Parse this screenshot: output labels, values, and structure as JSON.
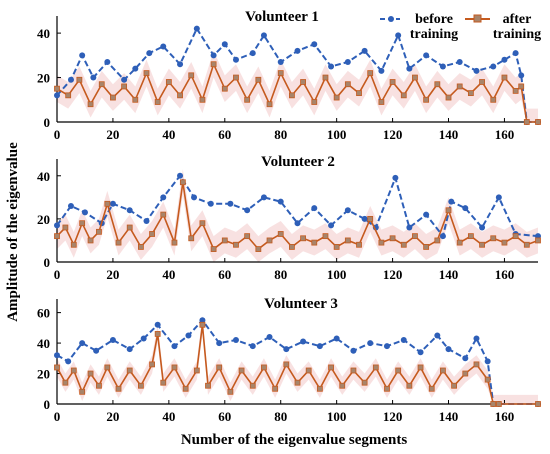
{
  "colors": {
    "before": "#2e5fb8",
    "after": "#c55a1e",
    "after_marker": "#a8846a",
    "band": "#f3c8c8",
    "axis": "#000000"
  },
  "labels": {
    "xlabel": "Number of the eigenvalue segments",
    "ylabel": "Amplitude of the eigenvalue"
  },
  "legend": {
    "placement": "top-right",
    "before_line1": "before",
    "before_line2": "training",
    "after_line1": "after",
    "after_line2": "training"
  },
  "chart_data": [
    {
      "type": "line",
      "title": "Volunteer 1",
      "xlim": [
        0,
        172
      ],
      "ylim": [
        0,
        45
      ],
      "xticks": [
        "0",
        "20",
        "40",
        "60",
        "80",
        "100",
        "120",
        "140",
        "160"
      ],
      "yticks": [
        "0",
        "20",
        "40"
      ],
      "series": [
        {
          "name": "before training",
          "x": [
            0,
            5,
            9,
            13,
            18,
            24,
            28,
            33,
            38,
            44,
            50,
            56,
            60,
            64,
            70,
            74,
            80,
            86,
            92,
            98,
            104,
            110,
            116,
            122,
            126,
            132,
            138,
            144,
            150,
            156,
            160,
            164,
            166,
            168,
            172
          ],
          "values": [
            12,
            19,
            30,
            20,
            27,
            19,
            24,
            31,
            34,
            26,
            42,
            30,
            35,
            28,
            31,
            39,
            27,
            32,
            35,
            25,
            27,
            32,
            23,
            39,
            24,
            30,
            25,
            27,
            23,
            25,
            28,
            31,
            21,
            0,
            0
          ]
        },
        {
          "name": "after training",
          "x": [
            0,
            4,
            8,
            12,
            16,
            20,
            24,
            28,
            32,
            36,
            40,
            44,
            48,
            52,
            56,
            60,
            64,
            68,
            72,
            76,
            80,
            84,
            88,
            92,
            96,
            100,
            104,
            108,
            112,
            116,
            120,
            124,
            128,
            132,
            136,
            140,
            144,
            148,
            152,
            156,
            160,
            164,
            166,
            168,
            172
          ],
          "values": [
            15,
            12,
            19,
            8,
            17,
            11,
            16,
            10,
            22,
            9,
            18,
            12,
            21,
            10,
            26,
            15,
            20,
            10,
            19,
            8,
            22,
            12,
            18,
            9,
            20,
            11,
            17,
            13,
            22,
            9,
            18,
            12,
            20,
            10,
            17,
            11,
            16,
            13,
            18,
            10,
            20,
            14,
            16,
            0,
            0
          ]
        }
      ]
    },
    {
      "type": "line",
      "title": "Volunteer 2",
      "xlim": [
        0,
        172
      ],
      "ylim": [
        0,
        45
      ],
      "xticks": [
        "0",
        "20",
        "40",
        "60",
        "80",
        "100",
        "120",
        "140",
        "160"
      ],
      "yticks": [
        "0",
        "20",
        "40"
      ],
      "series": [
        {
          "name": "before training",
          "x": [
            0,
            5,
            10,
            16,
            20,
            26,
            32,
            38,
            44,
            49,
            55,
            62,
            68,
            74,
            80,
            86,
            92,
            98,
            104,
            110,
            114,
            121,
            126,
            132,
            138,
            141,
            146,
            152,
            158,
            164,
            172
          ],
          "values": [
            17,
            26,
            23,
            18,
            27,
            24,
            19,
            30,
            40,
            30,
            27,
            27,
            24,
            30,
            28,
            18,
            25,
            17,
            24,
            20,
            16,
            39,
            16,
            22,
            12,
            28,
            25,
            16,
            30,
            13,
            12
          ]
        },
        {
          "name": "after training",
          "x": [
            0,
            3,
            6,
            9,
            12,
            15,
            18,
            22,
            26,
            30,
            34,
            38,
            42,
            45,
            48,
            52,
            56,
            60,
            64,
            68,
            72,
            76,
            80,
            84,
            88,
            92,
            96,
            100,
            104,
            108,
            112,
            116,
            120,
            124,
            128,
            132,
            136,
            140,
            144,
            148,
            152,
            156,
            160,
            164,
            168,
            172
          ],
          "values": [
            12,
            16,
            8,
            18,
            10,
            14,
            27,
            9,
            16,
            7,
            13,
            22,
            9,
            37,
            11,
            18,
            6,
            10,
            8,
            12,
            6,
            10,
            13,
            7,
            11,
            9,
            12,
            7,
            10,
            8,
            20,
            9,
            11,
            8,
            12,
            7,
            10,
            24,
            9,
            12,
            8,
            11,
            9,
            12,
            8,
            10
          ]
        }
      ]
    },
    {
      "type": "line",
      "title": "Volunteer 3",
      "xlim": [
        0,
        172
      ],
      "ylim": [
        0,
        65
      ],
      "xticks": [
        "0",
        "20",
        "40",
        "60",
        "80",
        "100",
        "120",
        "140",
        "160"
      ],
      "yticks": [
        "0",
        "20",
        "40",
        "60"
      ],
      "series": [
        {
          "name": "before training",
          "x": [
            0,
            4,
            9,
            14,
            20,
            26,
            31,
            36,
            42,
            47,
            52,
            58,
            64,
            70,
            76,
            82,
            88,
            94,
            100,
            106,
            112,
            118,
            124,
            130,
            136,
            140,
            146,
            150,
            154,
            156,
            158,
            172
          ],
          "values": [
            32,
            28,
            40,
            35,
            42,
            36,
            43,
            52,
            38,
            45,
            55,
            40,
            42,
            38,
            44,
            36,
            41,
            38,
            43,
            35,
            40,
            38,
            42,
            34,
            45,
            36,
            30,
            43,
            28,
            0,
            0,
            0
          ]
        },
        {
          "name": "after training",
          "x": [
            0,
            3,
            6,
            9,
            12,
            15,
            18,
            22,
            26,
            30,
            34,
            36,
            38,
            42,
            46,
            50,
            52,
            54,
            58,
            62,
            66,
            70,
            74,
            78,
            82,
            86,
            90,
            94,
            98,
            102,
            106,
            110,
            114,
            118,
            122,
            126,
            130,
            134,
            138,
            142,
            146,
            150,
            154,
            156,
            158,
            172
          ],
          "values": [
            24,
            14,
            22,
            8,
            20,
            12,
            24,
            10,
            22,
            12,
            26,
            46,
            14,
            24,
            10,
            22,
            52,
            12,
            24,
            8,
            22,
            12,
            24,
            10,
            26,
            14,
            22,
            10,
            24,
            12,
            22,
            14,
            24,
            10,
            22,
            12,
            24,
            10,
            22,
            12,
            20,
            26,
            16,
            0,
            0,
            0
          ]
        }
      ]
    }
  ]
}
